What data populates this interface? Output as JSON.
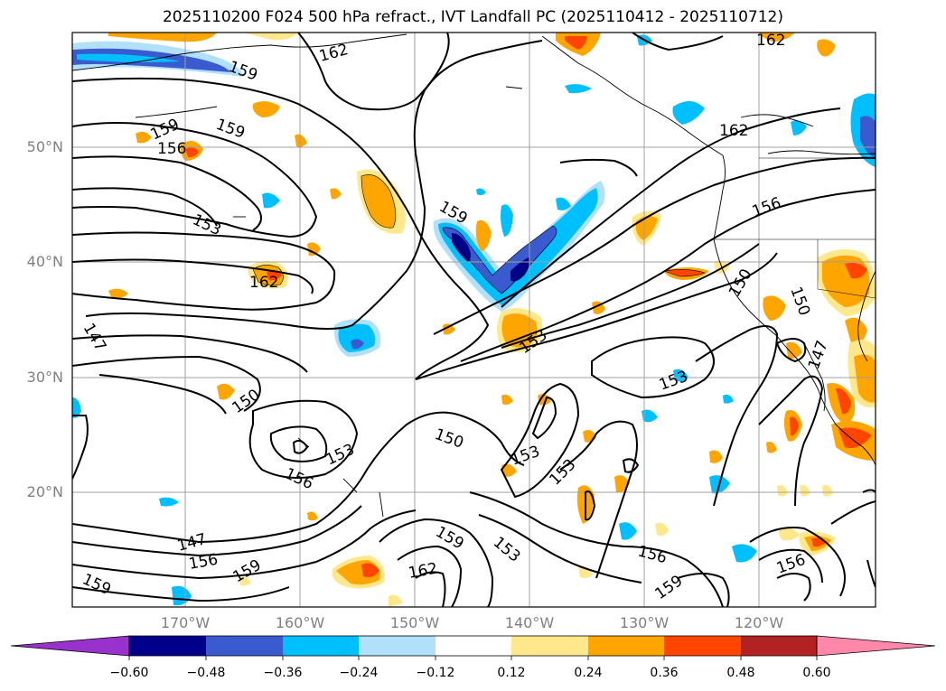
{
  "title": "2025110200 F024 500 hPa refract., IVT Landfall PC (2025110412 - 2025110712)",
  "map": {
    "lat_ticks": [
      "50°N",
      "40°N",
      "30°N",
      "20°N"
    ],
    "lon_ticks": [
      "170°W",
      "160°W",
      "150°W",
      "140°W",
      "130°W",
      "120°W"
    ],
    "contour_labels": [
      "159",
      "162",
      "159",
      "156",
      "159",
      "153",
      "159",
      "162",
      "153",
      "147",
      "150",
      "156",
      "153",
      "150",
      "153",
      "153",
      "147",
      "156",
      "159",
      "159",
      "162",
      "159",
      "153",
      "156",
      "159",
      "156",
      "162",
      "156",
      "150",
      "150",
      "147"
    ],
    "colors": {
      "line": "#000000",
      "grid": "#a0a0a0",
      "coast": "#000000"
    }
  },
  "colorbar": {
    "ticks": [
      "−0.60",
      "−0.48",
      "−0.36",
      "−0.24",
      "−0.12",
      "0.12",
      "0.24",
      "0.36",
      "0.48",
      "0.60"
    ],
    "colors": [
      "#9932cc",
      "#00008b",
      "#3a5ad0",
      "#00bfff",
      "#b0e0fa",
      "#ffffff",
      "#ffe88c",
      "#ffa500",
      "#ff4500",
      "#b22222",
      "#ff88aa"
    ]
  },
  "legend_colors": {
    "strong_neg": "#3a5ad0",
    "neg": "#00bfff",
    "weak_neg": "#b0e0fa",
    "weak_pos": "#ffe88c",
    "pos": "#ffa500",
    "strong_pos": "#ff4500",
    "vneg": "#00008b",
    "vpos": "#b22222"
  }
}
